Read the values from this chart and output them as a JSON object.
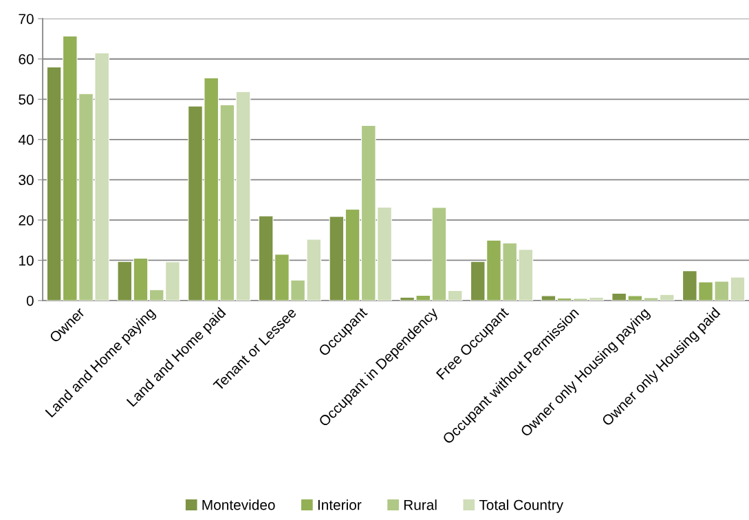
{
  "chart_data": {
    "type": "bar",
    "categories": [
      "Owner",
      "Land and Home paying",
      "Land and Home paid",
      "Tenant or Lessee",
      "Occupant",
      "Occupant in Dependency",
      "Free Occupant",
      "Occupant without Permission",
      "Owner only Housing paying",
      "Owner only Housing paid"
    ],
    "series": [
      {
        "name": "Montevideo",
        "color": "#7d9444",
        "values": [
          58.0,
          9.7,
          48.3,
          21.0,
          20.9,
          0.8,
          9.7,
          1.2,
          1.8,
          7.4
        ]
      },
      {
        "name": "Interior",
        "color": "#93b055",
        "values": [
          65.7,
          10.5,
          55.3,
          11.5,
          22.7,
          1.3,
          15.0,
          0.6,
          1.2,
          4.6
        ]
      },
      {
        "name": "Rural",
        "color": "#b0c886",
        "values": [
          51.4,
          2.7,
          48.6,
          5.1,
          43.5,
          23.1,
          14.3,
          0.5,
          0.7,
          4.8
        ]
      },
      {
        "name": "Total Country",
        "color": "#cfddb8",
        "values": [
          61.5,
          9.6,
          51.9,
          15.2,
          23.2,
          2.5,
          12.7,
          0.8,
          1.5,
          5.8
        ]
      }
    ],
    "ylim": [
      0,
      70
    ],
    "yticks": [
      0,
      10,
      20,
      30,
      40,
      50,
      60,
      70
    ],
    "grid": "y",
    "legend": "bottom"
  }
}
